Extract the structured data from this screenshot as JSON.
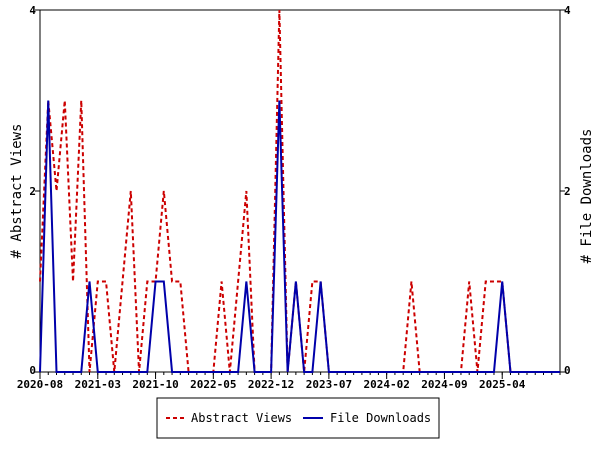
{
  "chart_data": {
    "type": "line",
    "ylabel_left": "# Abstract Views",
    "ylabel_right": "# File Downloads",
    "ylim": [
      0,
      4
    ],
    "yticks": [
      0,
      2,
      4
    ],
    "xlim": [
      "2020-08",
      "2025-11"
    ],
    "x_tick_labels": [
      "2020-08",
      "2021-03",
      "2021-10",
      "2022-05",
      "2022-12",
      "2023-07",
      "2024-02",
      "2024-09",
      "2025-04"
    ],
    "legend_position": "bottom",
    "grid": false,
    "series": [
      {
        "name": "Abstract Views",
        "color": "#cc0000",
        "style": "dashed",
        "axis": "left",
        "points": [
          [
            "2020-08",
            1
          ],
          [
            "2020-09",
            3
          ],
          [
            "2020-10",
            2
          ],
          [
            "2020-11",
            3
          ],
          [
            "2020-12",
            1
          ],
          [
            "2021-01",
            3
          ],
          [
            "2021-02",
            0
          ],
          [
            "2021-03",
            1
          ],
          [
            "2021-04",
            1
          ],
          [
            "2021-05",
            0
          ],
          [
            "2021-06",
            1
          ],
          [
            "2021-07",
            2
          ],
          [
            "2021-08",
            0
          ],
          [
            "2021-09",
            1
          ],
          [
            "2021-10",
            1
          ],
          [
            "2021-11",
            2
          ],
          [
            "2021-12",
            1
          ],
          [
            "2022-01",
            1
          ],
          [
            "2022-02",
            0
          ],
          [
            "2022-03",
            0
          ],
          [
            "2022-04",
            0
          ],
          [
            "2022-05",
            0
          ],
          [
            "2022-06",
            1
          ],
          [
            "2022-07",
            0
          ],
          [
            "2022-08",
            1
          ],
          [
            "2022-09",
            2
          ],
          [
            "2022-10",
            0
          ],
          [
            "2022-11",
            0
          ],
          [
            "2022-12",
            0
          ],
          [
            "2023-01",
            4
          ],
          [
            "2023-02",
            0
          ],
          [
            "2023-03",
            1
          ],
          [
            "2023-04",
            0
          ],
          [
            "2023-05",
            1
          ],
          [
            "2023-06",
            1
          ],
          [
            "2023-07",
            0
          ],
          [
            "2023-08",
            0
          ],
          [
            "2023-09",
            0
          ],
          [
            "2023-10",
            0
          ],
          [
            "2023-11",
            0
          ],
          [
            "2023-12",
            0
          ],
          [
            "2024-01",
            0
          ],
          [
            "2024-02",
            0
          ],
          [
            "2024-03",
            0
          ],
          [
            "2024-04",
            0
          ],
          [
            "2024-05",
            1
          ],
          [
            "2024-06",
            0
          ],
          [
            "2024-07",
            0
          ],
          [
            "2024-08",
            0
          ],
          [
            "2024-09",
            0
          ],
          [
            "2024-10",
            0
          ],
          [
            "2024-11",
            0
          ],
          [
            "2024-12",
            1
          ],
          [
            "2025-01",
            0
          ],
          [
            "2025-02",
            1
          ],
          [
            "2025-03",
            1
          ],
          [
            "2025-04",
            1
          ],
          [
            "2025-05",
            0
          ],
          [
            "2025-06",
            0
          ],
          [
            "2025-07",
            0
          ],
          [
            "2025-08",
            0
          ],
          [
            "2025-09",
            0
          ],
          [
            "2025-10",
            0
          ],
          [
            "2025-11",
            0
          ]
        ]
      },
      {
        "name": "File Downloads",
        "color": "#0000aa",
        "style": "solid",
        "axis": "right",
        "points": [
          [
            "2020-08",
            0
          ],
          [
            "2020-09",
            3
          ],
          [
            "2020-10",
            0
          ],
          [
            "2020-11",
            0
          ],
          [
            "2020-12",
            0
          ],
          [
            "2021-01",
            0
          ],
          [
            "2021-02",
            1
          ],
          [
            "2021-03",
            0
          ],
          [
            "2021-04",
            0
          ],
          [
            "2021-05",
            0
          ],
          [
            "2021-06",
            0
          ],
          [
            "2021-07",
            0
          ],
          [
            "2021-08",
            0
          ],
          [
            "2021-09",
            0
          ],
          [
            "2021-10",
            1
          ],
          [
            "2021-11",
            1
          ],
          [
            "2021-12",
            0
          ],
          [
            "2022-01",
            0
          ],
          [
            "2022-02",
            0
          ],
          [
            "2022-03",
            0
          ],
          [
            "2022-04",
            0
          ],
          [
            "2022-05",
            0
          ],
          [
            "2022-06",
            0
          ],
          [
            "2022-07",
            0
          ],
          [
            "2022-08",
            0
          ],
          [
            "2022-09",
            1
          ],
          [
            "2022-10",
            0
          ],
          [
            "2022-11",
            0
          ],
          [
            "2022-12",
            0
          ],
          [
            "2023-01",
            3
          ],
          [
            "2023-02",
            0
          ],
          [
            "2023-03",
            1
          ],
          [
            "2023-04",
            0
          ],
          [
            "2023-05",
            0
          ],
          [
            "2023-06",
            1
          ],
          [
            "2023-07",
            0
          ],
          [
            "2023-08",
            0
          ],
          [
            "2023-09",
            0
          ],
          [
            "2023-10",
            0
          ],
          [
            "2023-11",
            0
          ],
          [
            "2023-12",
            0
          ],
          [
            "2024-01",
            0
          ],
          [
            "2024-02",
            0
          ],
          [
            "2024-03",
            0
          ],
          [
            "2024-04",
            0
          ],
          [
            "2024-05",
            0
          ],
          [
            "2024-06",
            0
          ],
          [
            "2024-07",
            0
          ],
          [
            "2024-08",
            0
          ],
          [
            "2024-09",
            0
          ],
          [
            "2024-10",
            0
          ],
          [
            "2024-11",
            0
          ],
          [
            "2024-12",
            0
          ],
          [
            "2025-01",
            0
          ],
          [
            "2025-02",
            0
          ],
          [
            "2025-03",
            0
          ],
          [
            "2025-04",
            1
          ],
          [
            "2025-05",
            0
          ],
          [
            "2025-06",
            0
          ],
          [
            "2025-07",
            0
          ],
          [
            "2025-08",
            0
          ],
          [
            "2025-09",
            0
          ],
          [
            "2025-10",
            0
          ],
          [
            "2025-11",
            0
          ]
        ]
      }
    ]
  }
}
